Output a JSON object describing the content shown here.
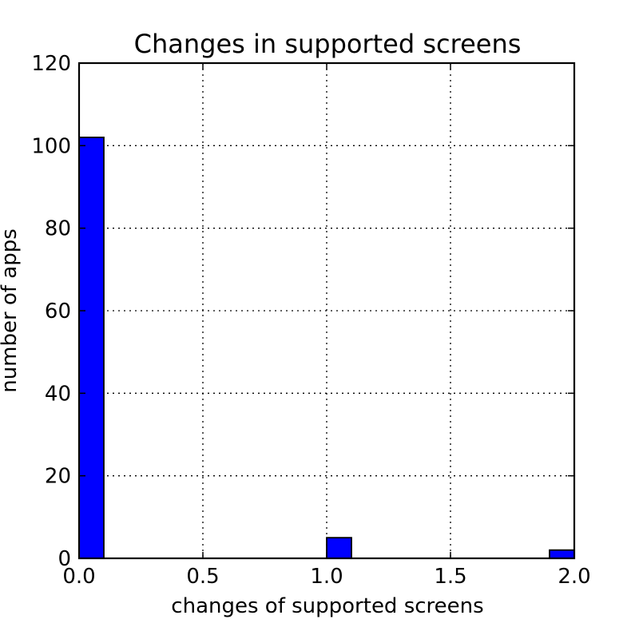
{
  "chart_data": {
    "type": "bar",
    "title": "Changes in supported screens",
    "xlabel": "changes of supported screens",
    "ylabel": "number of apps",
    "xlim": [
      0.0,
      2.0
    ],
    "ylim": [
      0,
      120
    ],
    "x_ticks": [
      "0.0",
      "0.5",
      "1.0",
      "1.5",
      "2.0"
    ],
    "y_ticks": [
      "0",
      "20",
      "40",
      "60",
      "80",
      "100",
      "120"
    ],
    "grid": true,
    "bar_color": "#0000ff",
    "bins": [
      {
        "x_start": 0.0,
        "x_end": 0.1,
        "value": 102
      },
      {
        "x_start": 1.0,
        "x_end": 1.1,
        "value": 5
      },
      {
        "x_start": 1.9,
        "x_end": 2.0,
        "value": 2
      }
    ]
  }
}
